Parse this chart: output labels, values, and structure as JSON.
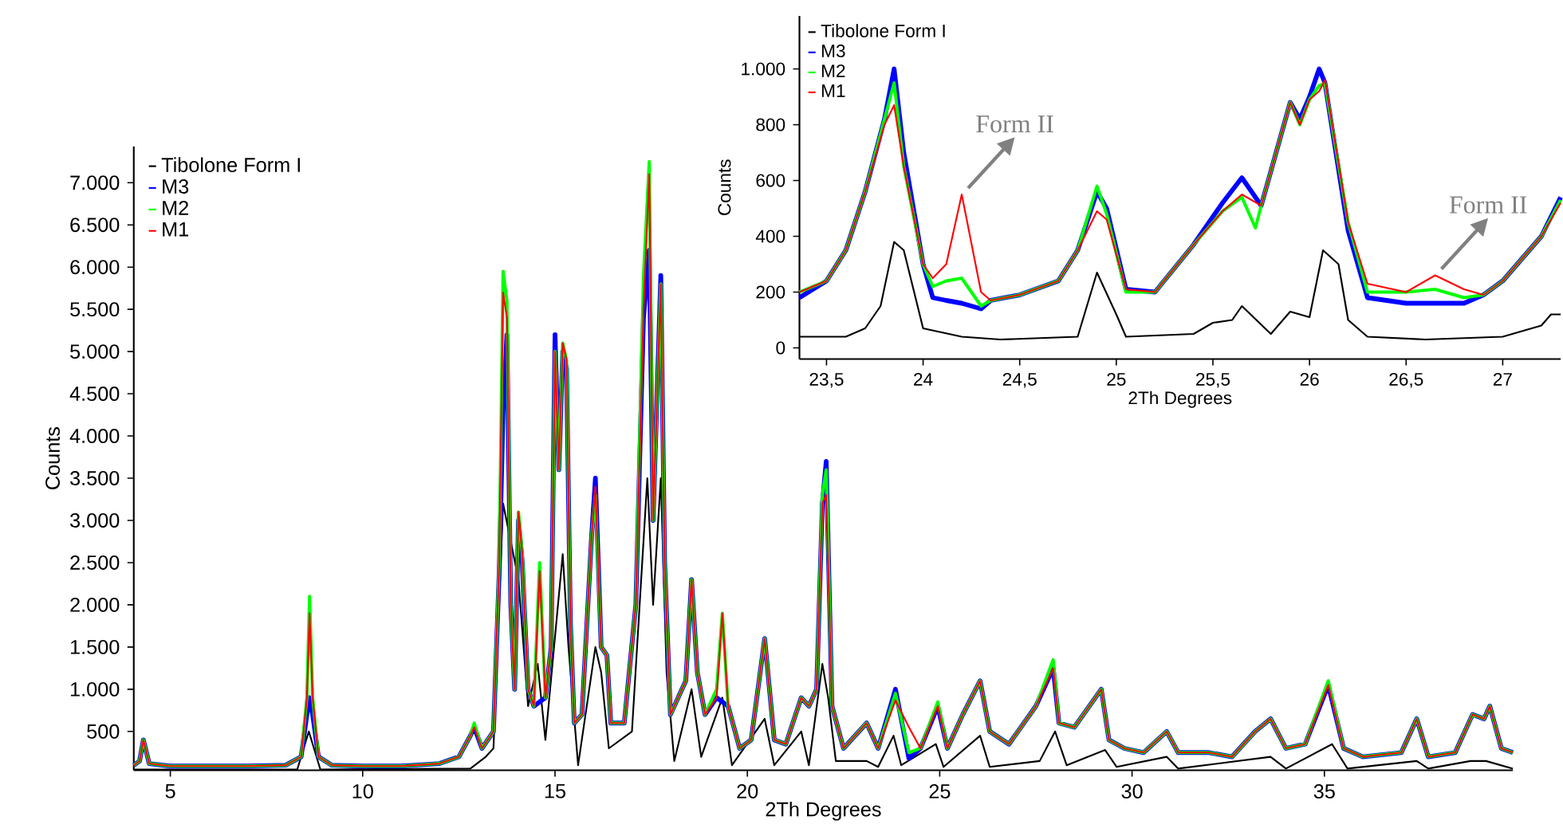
{
  "chart_data": [
    {
      "type": "line",
      "xlabel": "2Th Degrees",
      "ylabel": "Counts",
      "legend": "top left",
      "xlim": [
        4.05,
        39.9
      ],
      "ylim": [
        40,
        7430
      ],
      "xticks": [
        5,
        10,
        15,
        20,
        25,
        30,
        35
      ],
      "yticks": [
        500,
        {
          "value": 1000,
          "label": "1.000"
        },
        {
          "value": 1500,
          "label": "1.500"
        },
        {
          "value": 2000,
          "label": "2.000"
        },
        {
          "value": 2500,
          "label": "2.500"
        },
        {
          "value": 3000,
          "label": "3.000"
        },
        {
          "value": 3500,
          "label": "3.500"
        },
        {
          "value": 4000,
          "label": "4.000"
        },
        {
          "value": 4500,
          "label": "4.500"
        },
        {
          "value": 5000,
          "label": "5.000"
        },
        {
          "value": 5500,
          "label": "5.500"
        },
        {
          "value": 6000,
          "label": "6.000"
        },
        {
          "value": 6500,
          "label": "6.500"
        },
        {
          "value": 7000,
          "label": "7.000"
        }
      ],
      "series": [
        {
          "name": "Tibolone Form I",
          "color": "#000000",
          "x": [
            4.05,
            8.3,
            8.6,
            8.9,
            12.8,
            13.2,
            13.4,
            13.65,
            13.85,
            14.05,
            14.3,
            14.55,
            14.75,
            14.9,
            15.2,
            15.35,
            15.6,
            16.05,
            16.2,
            16.4,
            17.0,
            17.4,
            17.55,
            17.75,
            17.9,
            18.1,
            18.55,
            18.8,
            19.35,
            19.6,
            20.45,
            20.7,
            21.4,
            21.6,
            21.95,
            22.1,
            22.3,
            23.1,
            23.4,
            23.8,
            24.0,
            24.9,
            25.1,
            26.05,
            26.3,
            27.6,
            28.0,
            28.3,
            29.3,
            29.6,
            30.9,
            31.2,
            33.6,
            34.0,
            35.2,
            35.6,
            37.4,
            37.7,
            38.8,
            39.2,
            39.9
          ],
          "values": [
            50,
            50,
            500,
            50,
            60,
            200,
            300,
            3200,
            null,
            2300,
            800,
            1300,
            400,
            null,
            2600,
            1500,
            100,
            1500,
            1200,
            300,
            500,
            3500,
            2000,
            3500,
            1200,
            150,
            1000,
            200,
            900,
            100,
            650,
            100,
            500,
            100,
            1300,
            900,
            150,
            150,
            80,
            450,
            100,
            350,
            80,
            450,
            80,
            150,
            500,
            100,
            280,
            80,
            200,
            60,
            200,
            60,
            350,
            60,
            150,
            60,
            150,
            150,
            60
          ]
        },
        {
          "name": "M3",
          "color": "#0000ff",
          "x": [
            4.05,
            4.2,
            4.3,
            4.45,
            5,
            6,
            7,
            8,
            8.4,
            8.55,
            8.62,
            8.7,
            8.85,
            9.2,
            10,
            11,
            12,
            12.5,
            12.8,
            12.9,
            13.1,
            13.4,
            13.55,
            13.65,
            13.75,
            13.85,
            13.95,
            14.05,
            14.15,
            14.3,
            14.45,
            14.6,
            14.75,
            14.9,
            15.0,
            15.1,
            15.2,
            15.3,
            15.4,
            15.5,
            15.7,
            15.95,
            16.05,
            16.2,
            16.35,
            16.45,
            16.8,
            17.1,
            17.3,
            17.45,
            17.55,
            17.75,
            17.85,
            18.0,
            18.4,
            18.55,
            18.7,
            18.9,
            19.2,
            19.35,
            19.5,
            19.8,
            20.1,
            20.45,
            20.7,
            21.0,
            21.4,
            21.6,
            21.8,
            21.95,
            22.05,
            22.2,
            22.5,
            23.1,
            23.4,
            23.85,
            24.2,
            24.5,
            24.95,
            25.2,
            25.6,
            26.05,
            26.3,
            26.8,
            27.5,
            27.95,
            28.1,
            28.5,
            29.2,
            29.4,
            29.8,
            30.3,
            30.9,
            31.2,
            32,
            32.6,
            33.2,
            33.6,
            34,
            34.5,
            35.1,
            35.5,
            36,
            37,
            37.4,
            37.7,
            38.4,
            38.85,
            39.15,
            39.3,
            39.6,
            39.9
          ],
          "values": [
            100,
            150,
            400,
            120,
            90,
            90,
            90,
            100,
            200,
            700,
            900,
            700,
            200,
            100,
            90,
            90,
            120,
            200,
            450,
            550,
            300,
            500,
            2400,
            4300,
            5200,
            2000,
            1000,
            3000,
            2500,
            1000,
            800,
            null,
            900,
            1500,
            5200,
            3600,
            5000,
            4800,
            1800,
            600,
            700,
            2800,
            3500,
            1500,
            1400,
            600,
            600,
            2000,
            5400,
            6200,
            3000,
            5900,
            2500,
            700,
            1100,
            2300,
            1200,
            700,
            900,
            null,
            800,
            300,
            400,
            1600,
            400,
            350,
            900,
            800,
            1000,
            3200,
            3700,
            800,
            300,
            600,
            300,
            1000,
            180,
            300,
            800,
            300,
            700,
            1100,
            500,
            350,
            800,
            1250,
            600,
            550,
            1000,
            400,
            300,
            250,
            500,
            250,
            250,
            200,
            500,
            650,
            300,
            350,
            1050,
            300,
            200,
            250,
            650,
            200,
            250,
            700,
            650,
            800,
            300,
            250
          ]
        },
        {
          "name": "M2",
          "color": "#00ff00",
          "x": [
            4.05,
            4.2,
            4.3,
            4.45,
            5,
            6,
            7,
            8,
            8.4,
            8.55,
            8.62,
            8.7,
            8.85,
            9.2,
            10,
            11,
            12,
            12.5,
            12.8,
            12.9,
            13.1,
            13.4,
            13.55,
            13.65,
            13.75,
            13.85,
            13.95,
            14.05,
            14.15,
            14.3,
            14.45,
            14.6,
            14.75,
            14.9,
            15.0,
            15.1,
            15.2,
            15.3,
            15.4,
            15.5,
            15.7,
            15.95,
            16.05,
            16.2,
            16.35,
            16.45,
            16.8,
            17.1,
            17.3,
            17.45,
            17.55,
            17.75,
            17.85,
            18.0,
            18.4,
            18.55,
            18.7,
            18.9,
            19.2,
            19.35,
            19.5,
            19.8,
            20.1,
            20.45,
            20.7,
            21.0,
            21.4,
            21.6,
            21.8,
            21.95,
            22.05,
            22.2,
            22.5,
            23.1,
            23.4,
            23.85,
            24.2,
            24.5,
            24.95,
            25.2,
            25.6,
            26.05,
            26.3,
            26.8,
            27.5,
            27.95,
            28.1,
            28.5,
            29.2,
            29.4,
            29.8,
            30.3,
            30.9,
            31.2,
            32,
            32.6,
            33.2,
            33.6,
            34,
            34.5,
            35.1,
            35.5,
            36,
            37,
            37.4,
            37.7,
            38.4,
            38.85,
            39.15,
            39.3,
            39.6,
            39.9
          ],
          "values": [
            100,
            150,
            400,
            120,
            90,
            90,
            90,
            100,
            200,
            900,
            2100,
            900,
            200,
            100,
            90,
            90,
            120,
            200,
            450,
            600,
            300,
            500,
            2500,
            5950,
            5600,
            2000,
            1000,
            3100,
            2600,
            1000,
            800,
            2500,
            900,
            1500,
            5000,
            3600,
            5100,
            4900,
            1800,
            600,
            700,
            2800,
            3300,
            1500,
            1400,
            600,
            600,
            2000,
            5900,
            7250,
            3000,
            5800,
            2500,
            700,
            1100,
            2300,
            1200,
            700,
            1000,
            1900,
            800,
            300,
            400,
            1600,
            400,
            350,
            900,
            800,
            1000,
            3300,
            3600,
            800,
            300,
            600,
            300,
            950,
            250,
            300,
            850,
            300,
            700,
            1100,
            500,
            350,
            800,
            1350,
            600,
            550,
            1000,
            400,
            300,
            250,
            500,
            250,
            250,
            200,
            500,
            650,
            300,
            350,
            1100,
            300,
            200,
            250,
            650,
            200,
            250,
            700,
            650,
            800,
            300,
            250
          ]
        },
        {
          "name": "M1",
          "color": "#ff0000",
          "x": [
            4.05,
            4.2,
            4.3,
            4.45,
            5,
            6,
            7,
            8,
            8.4,
            8.55,
            8.62,
            8.7,
            8.85,
            9.2,
            10,
            11,
            12,
            12.5,
            12.8,
            12.9,
            13.1,
            13.4,
            13.55,
            13.65,
            13.75,
            13.85,
            13.95,
            14.05,
            14.15,
            14.3,
            14.45,
            14.6,
            14.75,
            14.9,
            15.0,
            15.1,
            15.2,
            15.3,
            15.4,
            15.5,
            15.7,
            15.95,
            16.05,
            16.2,
            16.35,
            16.45,
            16.8,
            17.1,
            17.3,
            17.45,
            17.55,
            17.75,
            17.85,
            18.0,
            18.4,
            18.55,
            18.7,
            18.9,
            19.2,
            19.35,
            19.5,
            19.8,
            20.1,
            20.45,
            20.7,
            21.0,
            21.4,
            21.6,
            21.8,
            21.95,
            22.05,
            22.2,
            22.5,
            23.1,
            23.4,
            23.85,
            24.2,
            24.5,
            24.95,
            25.2,
            25.6,
            26.05,
            26.3,
            26.8,
            27.5,
            27.95,
            28.1,
            28.5,
            29.2,
            29.4,
            29.8,
            30.3,
            30.9,
            31.2,
            32,
            32.6,
            33.2,
            33.6,
            34,
            34.5,
            35.1,
            35.5,
            36,
            37,
            37.4,
            37.7,
            38.4,
            38.85,
            39.15,
            39.3,
            39.6,
            39.9
          ],
          "values": [
            100,
            150,
            400,
            120,
            90,
            90,
            90,
            100,
            200,
            900,
            1900,
            900,
            200,
            100,
            90,
            90,
            120,
            200,
            450,
            550,
            300,
            500,
            2500,
            5700,
            5400,
            2000,
            1000,
            3100,
            2600,
            1000,
            800,
            2400,
            900,
            1500,
            5000,
            3600,
            5100,
            4900,
            1800,
            600,
            700,
            2800,
            3400,
            1500,
            1400,
            600,
            600,
            2000,
            5500,
            7100,
            3000,
            5800,
            2500,
            700,
            1100,
            2300,
            1200,
            700,
            900,
            1900,
            800,
            300,
            400,
            1600,
            400,
            350,
            900,
            800,
            1000,
            3200,
            3300,
            800,
            300,
            600,
            300,
            870,
            550,
            300,
            800,
            300,
            700,
            1100,
            500,
            350,
            800,
            1250,
            600,
            550,
            1000,
            400,
            300,
            250,
            500,
            250,
            250,
            200,
            500,
            650,
            300,
            350,
            1050,
            300,
            200,
            250,
            650,
            200,
            250,
            700,
            650,
            800,
            300,
            250
          ]
        }
      ]
    },
    {
      "type": "line",
      "xlabel": "2Th Degrees",
      "ylabel": "Counts",
      "legend": "top left",
      "xlim": [
        23.36,
        27.3
      ],
      "ylim": [
        -40,
        1190
      ],
      "xticks": [
        {
          "value": 23.5,
          "label": "23,5"
        },
        24,
        {
          "value": 24.5,
          "label": "24,5"
        },
        25,
        {
          "value": 25.5,
          "label": "25,5"
        },
        26,
        {
          "value": 26.5,
          "label": "26,5"
        },
        27
      ],
      "yticks": [
        0,
        200,
        400,
        600,
        800,
        {
          "value": 1000,
          "label": "1.000"
        }
      ],
      "annotations": [
        {
          "text": "Form II",
          "x": 24.2,
          "y": 550
        },
        {
          "text": "Form II",
          "x": 26.65,
          "y": 260
        }
      ],
      "series": [
        {
          "name": "Tibolone Form I",
          "color": "#000000",
          "x": [
            23.36,
            23.6,
            23.7,
            23.78,
            23.85,
            23.9,
            24.0,
            24.2,
            24.4,
            24.8,
            24.9,
            25.0,
            25.05,
            25.4,
            25.5,
            25.6,
            25.65,
            25.8,
            25.9,
            26.0,
            26.07,
            26.15,
            26.2,
            26.3,
            26.6,
            27.0,
            27.2,
            27.25,
            27.3
          ],
          "values": [
            40,
            40,
            70,
            150,
            380,
            350,
            70,
            40,
            30,
            40,
            270,
            120,
            40,
            50,
            90,
            100,
            150,
            50,
            130,
            110,
            350,
            300,
            100,
            40,
            30,
            40,
            80,
            120,
            120
          ]
        },
        {
          "name": "M3",
          "color": "#0000ff",
          "x": [
            23.36,
            23.5,
            23.6,
            23.7,
            23.8,
            23.85,
            23.9,
            24.0,
            24.05,
            24.12,
            24.2,
            24.3,
            24.35,
            24.5,
            24.7,
            24.8,
            24.9,
            24.95,
            25.05,
            25.2,
            25.4,
            25.55,
            25.65,
            25.75,
            25.9,
            25.95,
            26.0,
            26.05,
            26.08,
            26.2,
            26.3,
            26.5,
            26.65,
            26.8,
            26.9,
            27.0,
            27.2,
            27.3
          ],
          "values": [
            180,
            240,
            350,
            560,
            820,
            1000,
            700,
            300,
            180,
            170,
            160,
            140,
            170,
            190,
            240,
            350,
            560,
            500,
            210,
            200,
            370,
            520,
            610,
            510,
            880,
            820,
            900,
            1000,
            950,
            420,
            180,
            160,
            160,
            160,
            190,
            240,
            400,
            540
          ]
        },
        {
          "name": "M2",
          "color": "#00ff00",
          "x": [
            23.36,
            23.5,
            23.6,
            23.7,
            23.8,
            23.85,
            23.9,
            24.0,
            24.05,
            24.12,
            24.2,
            24.3,
            24.35,
            24.5,
            24.7,
            24.8,
            24.9,
            24.95,
            25.05,
            25.2,
            25.4,
            25.55,
            25.65,
            25.72,
            25.75,
            25.9,
            25.95,
            26.0,
            26.05,
            26.08,
            26.2,
            26.3,
            26.5,
            26.65,
            26.8,
            26.9,
            27.0,
            27.2,
            27.3
          ],
          "values": [
            200,
            240,
            350,
            560,
            820,
            950,
            650,
            300,
            220,
            240,
            250,
            150,
            170,
            190,
            240,
            350,
            580,
            480,
            200,
            200,
            370,
            490,
            540,
            430,
            510,
            880,
            800,
            890,
            940,
            950,
            450,
            200,
            200,
            210,
            180,
            190,
            240,
            400,
            530
          ]
        },
        {
          "name": "M1",
          "color": "#ff0000",
          "x": [
            23.36,
            23.5,
            23.6,
            23.7,
            23.8,
            23.85,
            23.9,
            24.0,
            24.05,
            24.12,
            24.2,
            24.3,
            24.35,
            24.5,
            24.7,
            24.8,
            24.9,
            24.95,
            25.05,
            25.2,
            25.4,
            25.55,
            25.65,
            25.75,
            25.9,
            25.95,
            26.0,
            26.05,
            26.08,
            26.2,
            26.3,
            26.5,
            26.65,
            26.8,
            26.9,
            27.0,
            27.2,
            27.3
          ],
          "values": [
            200,
            240,
            350,
            560,
            800,
            870,
            650,
            300,
            250,
            300,
            550,
            200,
            170,
            190,
            240,
            350,
            490,
            460,
            210,
            200,
            370,
            490,
            550,
            510,
            880,
            800,
            890,
            920,
            960,
            450,
            230,
            200,
            260,
            210,
            190,
            240,
            400,
            520
          ]
        }
      ]
    }
  ]
}
